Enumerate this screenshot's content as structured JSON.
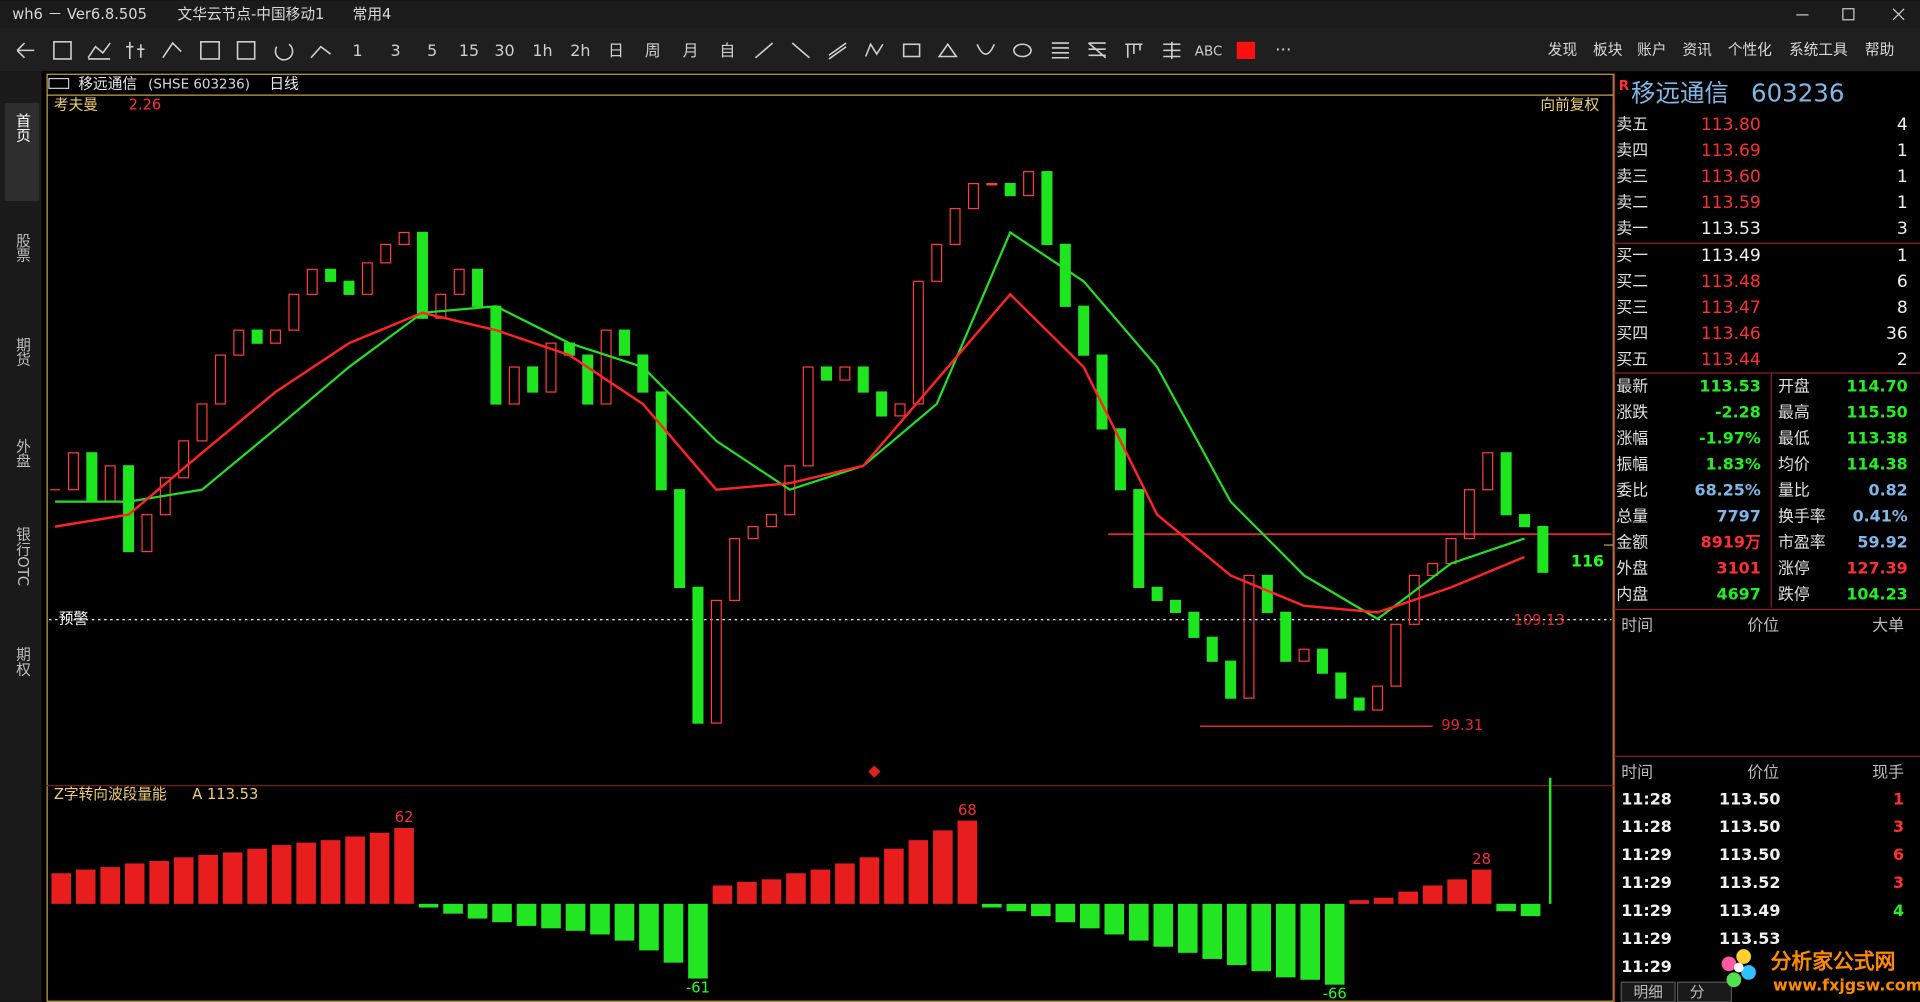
{
  "window": {
    "title": "wh6 － Ver6.8.505",
    "node": "文华云节点-中国移动1",
    "layout": "常用4"
  },
  "toolbar": {
    "periods": [
      "1",
      "3",
      "5",
      "15",
      "30",
      "1h",
      "2h",
      "日",
      "周",
      "月",
      "自"
    ],
    "text_tool": "ABC",
    "menu": [
      "发现",
      "板块",
      "账户",
      "资讯",
      "个性化",
      "系统工具",
      "帮助"
    ]
  },
  "side_tabs": [
    "首页",
    "股票",
    "期货",
    "外盘",
    "银行OTC",
    "期权"
  ],
  "chart_header": {
    "name": "移远通信",
    "code": "(SHSE 603236)",
    "period": "日线",
    "indicator": "考夫曼",
    "indicator_value": "2.26",
    "adjust": "向前复权",
    "alert": "预警",
    "sub_indicator": "Z字转向波段量能",
    "sub_value": "A 113.53"
  },
  "chart_data": [
    {
      "type": "candlestick",
      "values": [
        121.1,
        124.5,
        120.0,
        123.3,
        115.4,
        118.8,
        122.2,
        125.6,
        129.0,
        133.5,
        135.8,
        134.6,
        135.8,
        139.1,
        141.4,
        140.3,
        139.1,
        142.0,
        143.7,
        144.8,
        136.9,
        139.1,
        141.4,
        138.0,
        129.0,
        132.4,
        130.1,
        134.6,
        133.5,
        129.0,
        135.8,
        133.5,
        130.1,
        121.1,
        112.1,
        99.6,
        110.9,
        116.6,
        117.7,
        118.8,
        123.3,
        132.4,
        131.2,
        132.4,
        130.1,
        127.9,
        129.0,
        140.3,
        143.7,
        147.0,
        149.3,
        149.3,
        148.2,
        150.4,
        143.7,
        138.0,
        133.5,
        126.7,
        121.1,
        112.1,
        110.9,
        109.8,
        107.5,
        105.3,
        101.9,
        113.2,
        109.8,
        105.3,
        106.4,
        104.2,
        101.9,
        100.8,
        103.0,
        108.7,
        113.2,
        114.3,
        116.6,
        121.1,
        124.5,
        118.8,
        117.7,
        113.5
      ],
      "ma_red": [
        117.7,
        118.8,
        124.5,
        130.1,
        134.6,
        137.4,
        135.8,
        133.5,
        129.0,
        121.1,
        121.7,
        123.3,
        131.2,
        139.1,
        132.4,
        118.8,
        113.2,
        110.4,
        109.8,
        112.1,
        114.9
      ],
      "ma_green": [
        120.0,
        120.0,
        121.1,
        126.7,
        132.4,
        137.4,
        138.0,
        134.6,
        132.4,
        125.6,
        121.1,
        123.3,
        129.0,
        144.8,
        140.3,
        132.4,
        120.0,
        113.2,
        109.2,
        114.3,
        116.6
      ],
      "ylim": [
        94,
        157.4
      ],
      "yticks": [
        116
      ],
      "support": 99.31,
      "alert_line": 109.13,
      "resistance": 117.0,
      "colors": {
        "up": "#ff3b3b",
        "down": "#1ee61e",
        "ma_red": "#ff2424",
        "ma_green": "#22e022",
        "support": "#e02a2a",
        "alert": "#ffffff",
        "label": "#e02a2a",
        "tick": "#22ff22"
      }
    },
    {
      "type": "bar",
      "values": [
        25,
        28,
        30,
        33,
        35,
        38,
        40,
        42,
        45,
        48,
        50,
        52,
        55,
        58,
        62,
        -3,
        -8,
        -12,
        -15,
        -18,
        -20,
        -22,
        -25,
        -30,
        -38,
        -48,
        -61,
        15,
        18,
        20,
        25,
        28,
        33,
        38,
        45,
        52,
        60,
        68,
        -3,
        -6,
        -10,
        -15,
        -20,
        -25,
        -30,
        -35,
        -40,
        -45,
        -50,
        -55,
        -60,
        -62,
        -66,
        3,
        5,
        10,
        15,
        20,
        28,
        -6,
        -10
      ],
      "ylim": [
        -74,
        93
      ],
      "colors": {
        "positive": "#e81e1e",
        "negative": "#22e622",
        "positive_label": "#ff3030",
        "negative_label": "#22ff22"
      }
    }
  ],
  "quote": {
    "flag": "R",
    "name": "移远通信",
    "code": "603236",
    "asks": [
      [
        "卖五",
        "113.80",
        "4"
      ],
      [
        "卖四",
        "113.69",
        "1"
      ],
      [
        "卖三",
        "113.60",
        "1"
      ],
      [
        "卖二",
        "113.59",
        "1"
      ],
      [
        "卖一",
        "113.53",
        "3"
      ]
    ],
    "bids": [
      [
        "买一",
        "113.49",
        "1"
      ],
      [
        "买二",
        "113.48",
        "6"
      ],
      [
        "买三",
        "113.47",
        "8"
      ],
      [
        "买四",
        "113.46",
        "36"
      ],
      [
        "买五",
        "113.44",
        "2"
      ]
    ],
    "stats": [
      [
        "最新",
        "113.53",
        "开盘",
        "114.70"
      ],
      [
        "涨跌",
        "-2.28",
        "最高",
        "115.50"
      ],
      [
        "涨幅",
        "-1.97%",
        "最低",
        "113.38"
      ],
      [
        "振幅",
        "1.83%",
        "均价",
        "114.38"
      ],
      [
        "委比",
        "68.25%",
        "量比",
        "0.82"
      ],
      [
        "总量",
        "7797",
        "换手率",
        "0.41%"
      ],
      [
        "金额",
        "8919万",
        "市盈率",
        "59.92"
      ],
      [
        "外盘",
        "3101",
        "涨停",
        "127.39"
      ],
      [
        "内盘",
        "4697",
        "跌停",
        "104.23"
      ]
    ],
    "big_orders_header": [
      "时间",
      "价位",
      "大单"
    ],
    "ticks_header": [
      "时间",
      "价位",
      "现手"
    ],
    "ticks": [
      [
        "11:28",
        "113.50",
        "1"
      ],
      [
        "11:28",
        "113.50",
        "3"
      ],
      [
        "11:29",
        "113.50",
        "6"
      ],
      [
        "11:29",
        "113.52",
        "3"
      ],
      [
        "11:29",
        "113.49",
        "4"
      ],
      [
        "11:29",
        "113.53"
      ],
      [
        "11:29"
      ]
    ],
    "tabs": [
      "明细",
      "分"
    ]
  },
  "watermark": {
    "name": "分析家公式网",
    "url": "www.fxjgsw.com"
  }
}
